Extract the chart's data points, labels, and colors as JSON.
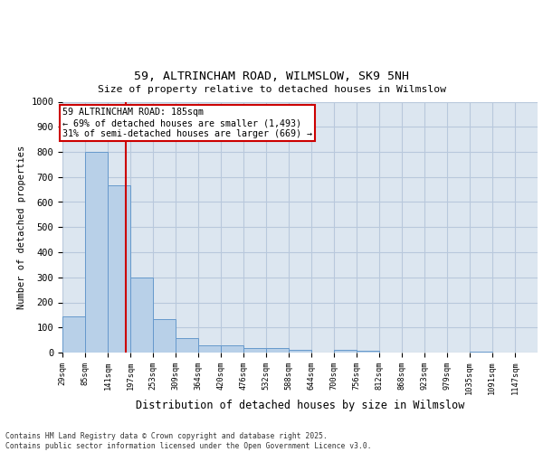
{
  "title1": "59, ALTRINCHAM ROAD, WILMSLOW, SK9 5NH",
  "title2": "Size of property relative to detached houses in Wilmslow",
  "xlabel": "Distribution of detached houses by size in Wilmslow",
  "ylabel": "Number of detached properties",
  "bar_color": "#b8d0e8",
  "bar_edge_color": "#6699cc",
  "annotation_box_text": "59 ALTRINCHAM ROAD: 185sqm\n← 69% of detached houses are smaller (1,493)\n31% of semi-detached houses are larger (669) →",
  "vline_x_bin_index": 2,
  "vline_color": "#cc0000",
  "background_color": "#dce6f0",
  "footer_text": "Contains HM Land Registry data © Crown copyright and database right 2025.\nContains public sector information licensed under the Open Government Licence v3.0.",
  "bins": [
    29,
    85,
    141,
    197,
    253,
    309,
    364,
    420,
    476,
    532,
    588,
    644,
    700,
    756,
    812,
    868,
    923,
    979,
    1035,
    1091,
    1147
  ],
  "counts": [
    143,
    800,
    665,
    300,
    135,
    57,
    30,
    30,
    17,
    17,
    12,
    0,
    10,
    8,
    0,
    0,
    0,
    0,
    5,
    0,
    0
  ],
  "ylim": [
    0,
    1000
  ],
  "yticks": [
    0,
    100,
    200,
    300,
    400,
    500,
    600,
    700,
    800,
    900,
    1000
  ],
  "grid_color": "#b8c8dc",
  "vline_xval": 185
}
